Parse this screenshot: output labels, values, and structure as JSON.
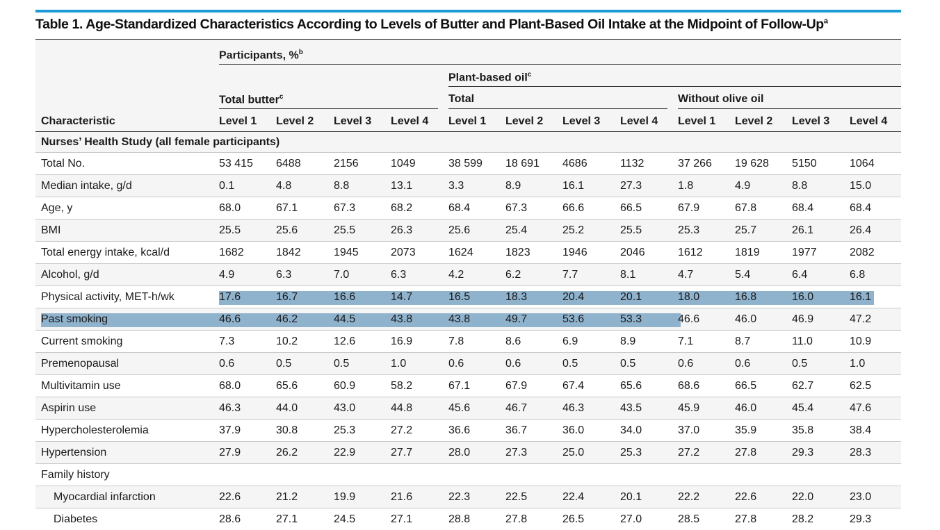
{
  "table": {
    "title": "Table 1. Age-Standardized Characteristics According to Levels of Butter and Plant-Based Oil Intake at the Midpoint of Follow-Up",
    "title_footnote": "a",
    "header": {
      "participants": "Participants, %",
      "participants_footnote": "b",
      "plant_based_oil": "Plant-based oil",
      "plant_based_oil_footnote": "c",
      "total_butter": "Total butter",
      "total_butter_footnote": "c",
      "total": "Total",
      "without_olive_oil": "Without olive oil",
      "characteristic": "Characteristic",
      "levels": [
        "Level 1",
        "Level 2",
        "Level 3",
        "Level 4",
        "Level 1",
        "Level 2",
        "Level 3",
        "Level 4",
        "Level 1",
        "Level 2",
        "Level 3",
        "Level 4"
      ]
    },
    "rows": [
      {
        "label": "Nurses’ Health Study (all female participants)",
        "section": true,
        "values": []
      },
      {
        "label": "Total No.",
        "values": [
          "53 415",
          "6488",
          "2156",
          "1049",
          "38 599",
          "18 691",
          "4686",
          "1132",
          "37 266",
          "19 628",
          "5150",
          "1064"
        ]
      },
      {
        "label": "Median intake, g/d",
        "values": [
          "0.1",
          "4.8",
          "8.8",
          "13.1",
          "3.3",
          "8.9",
          "16.1",
          "27.3",
          "1.8",
          "4.9",
          "8.8",
          "15.0"
        ]
      },
      {
        "label": "Age, y",
        "values": [
          "68.0",
          "67.1",
          "67.3",
          "68.2",
          "68.4",
          "67.3",
          "66.6",
          "66.5",
          "67.9",
          "67.8",
          "68.4",
          "68.4"
        ]
      },
      {
        "label": "BMI",
        "values": [
          "25.5",
          "25.6",
          "25.5",
          "26.3",
          "25.6",
          "25.4",
          "25.2",
          "25.5",
          "25.3",
          "25.7",
          "26.1",
          "26.4"
        ]
      },
      {
        "label": "Total energy intake, kcal/d",
        "values": [
          "1682",
          "1842",
          "1945",
          "2073",
          "1624",
          "1823",
          "1946",
          "2046",
          "1612",
          "1819",
          "1977",
          "2082"
        ]
      },
      {
        "label": "Alcohol, g/d",
        "values": [
          "4.9",
          "6.3",
          "7.0",
          "6.3",
          "4.2",
          "6.2",
          "7.7",
          "8.1",
          "4.7",
          "5.4",
          "6.4",
          "6.8"
        ]
      },
      {
        "label": "Physical activity, MET-h/wk",
        "values": [
          "17.6",
          "16.7",
          "16.6",
          "14.7",
          "16.5",
          "18.3",
          "20.4",
          "20.1",
          "18.0",
          "16.8",
          "16.0",
          "16.1"
        ],
        "highlight": "values"
      },
      {
        "label": "Past smoking",
        "values": [
          "46.6",
          "46.2",
          "44.5",
          "43.8",
          "43.8",
          "49.7",
          "53.6",
          "53.3",
          "46.6",
          "46.0",
          "46.9",
          "47.2"
        ],
        "highlight": "through-col8"
      },
      {
        "label": "Current smoking",
        "values": [
          "7.3",
          "10.2",
          "12.6",
          "16.9",
          "7.8",
          "8.6",
          "6.9",
          "8.9",
          "7.1",
          "8.7",
          "11.0",
          "10.9"
        ]
      },
      {
        "label": "Premenopausal",
        "values": [
          "0.6",
          "0.5",
          "0.5",
          "1.0",
          "0.6",
          "0.6",
          "0.5",
          "0.5",
          "0.6",
          "0.6",
          "0.5",
          "1.0"
        ]
      },
      {
        "label": "Multivitamin use",
        "values": [
          "68.0",
          "65.6",
          "60.9",
          "58.2",
          "67.1",
          "67.9",
          "67.4",
          "65.6",
          "68.6",
          "66.5",
          "62.7",
          "62.5"
        ]
      },
      {
        "label": "Aspirin use",
        "values": [
          "46.3",
          "44.0",
          "43.0",
          "44.8",
          "45.6",
          "46.7",
          "46.3",
          "43.5",
          "45.9",
          "46.0",
          "45.4",
          "47.6"
        ]
      },
      {
        "label": "Hypercholesterolemia",
        "values": [
          "37.9",
          "30.8",
          "25.3",
          "27.2",
          "36.6",
          "36.7",
          "36.0",
          "34.0",
          "37.0",
          "35.9",
          "35.8",
          "38.4"
        ]
      },
      {
        "label": "Hypertension",
        "values": [
          "27.9",
          "26.2",
          "22.9",
          "27.7",
          "28.0",
          "27.3",
          "25.0",
          "25.3",
          "27.2",
          "27.8",
          "29.3",
          "28.3"
        ]
      },
      {
        "label": "Family history",
        "values": []
      },
      {
        "label": "Myocardial infarction",
        "indent": true,
        "values": [
          "22.6",
          "21.2",
          "19.9",
          "21.6",
          "22.3",
          "22.5",
          "22.4",
          "20.1",
          "22.2",
          "22.6",
          "22.0",
          "23.0"
        ]
      },
      {
        "label": "Diabetes",
        "indent": true,
        "values": [
          "28.6",
          "27.1",
          "24.5",
          "27.1",
          "28.8",
          "27.8",
          "26.5",
          "27.0",
          "28.5",
          "27.8",
          "28.2",
          "29.3"
        ]
      }
    ]
  }
}
